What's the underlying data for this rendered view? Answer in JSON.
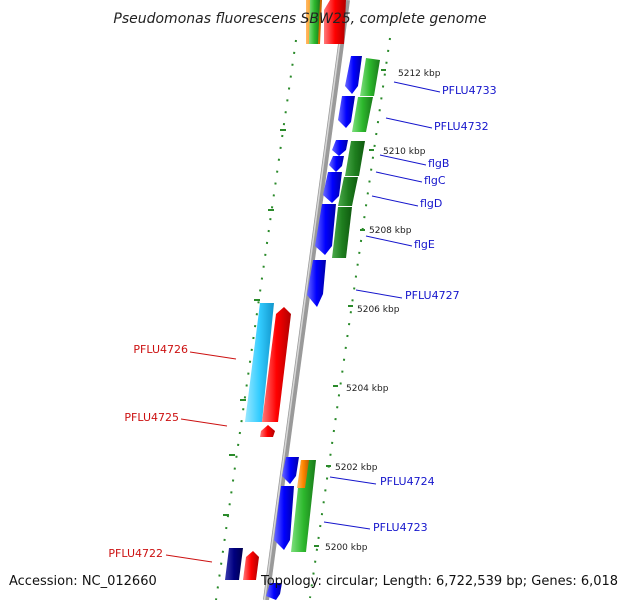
{
  "title": "Pseudomonas fluorescens SBW25, complete genome",
  "footer": {
    "accession": "Accession: NC_012660",
    "topology": "Topology: circular; Length: 6,722,539 bp; Genes: 6,018"
  },
  "ticks": [
    "5212 kbp",
    "5210 kbp",
    "5208 kbp",
    "5206 kbp",
    "5204 kbp",
    "5202 kbp",
    "5200 kbp"
  ],
  "genes_forward": [
    "PFLU4733",
    "PFLU4732",
    "flgB",
    "flgC",
    "flgD",
    "flgE",
    "PFLU4727",
    "PFLU4724",
    "PFLU4723"
  ],
  "genes_reverse": [
    "PFLU4726",
    "PFLU4725",
    "PFLU4722"
  ],
  "colors": {
    "forward_gene": "#0000ff",
    "reverse_gene": "#ff0000",
    "forward_label": "#1515cc",
    "reverse_label": "#cc1111",
    "cds": "#22aa22",
    "cyan": "#33ccff",
    "navy": "#000080",
    "orange": "#ff8800",
    "backbone": "#999999"
  }
}
